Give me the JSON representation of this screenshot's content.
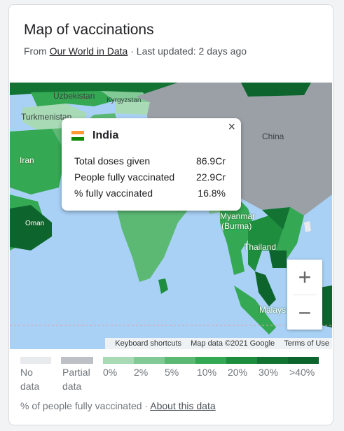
{
  "header": {
    "title": "Map of vaccinations",
    "source_prefix": "From",
    "source_link": "Our World in Data",
    "updated": "· Last updated: 2 days ago"
  },
  "map": {
    "labels": {
      "uzbekistan": "Uzbekistan",
      "kyrgyzstan": "Kyrgyzstan",
      "turkmenistan": "Turkmenistan",
      "iran": "Iran",
      "oman": "Oman",
      "china": "China",
      "myanmar": "Myanmar",
      "burma": "(Burma)",
      "thailand": "Thailand",
      "malaysia": "Malays"
    },
    "popup": {
      "country": "India",
      "flag_colors": [
        "#ff9933",
        "#ffffff",
        "#138808"
      ],
      "rows": [
        {
          "label": "Total doses given",
          "value": "86.9Cr"
        },
        {
          "label": "People fully vaccinated",
          "value": "22.9Cr"
        },
        {
          "label": "% fully vaccinated",
          "value": "16.8%"
        }
      ]
    },
    "zoom_in": "+",
    "zoom_out": "−",
    "attribution": {
      "shortcuts": "Keyboard shortcuts",
      "map_data": "Map data ©2021 Google",
      "terms": "Terms of Use"
    }
  },
  "legend": {
    "no_data": [
      "No",
      "data"
    ],
    "partial": [
      "Partial",
      "data"
    ],
    "ticks": [
      "0%",
      "2%",
      "5%",
      "10%",
      "20%",
      "30%",
      ">40%"
    ],
    "no_data_color": "#e8eaed",
    "partial_color": "#bdc1c6",
    "scale_colors": [
      "#a8dab5",
      "#81c995",
      "#5bb974",
      "#34a853",
      "#1e8e3e",
      "#137333",
      "#0d652d"
    ]
  },
  "footer": {
    "text": "% of people fully vaccinated",
    "sep": " · ",
    "link": "About this data"
  }
}
